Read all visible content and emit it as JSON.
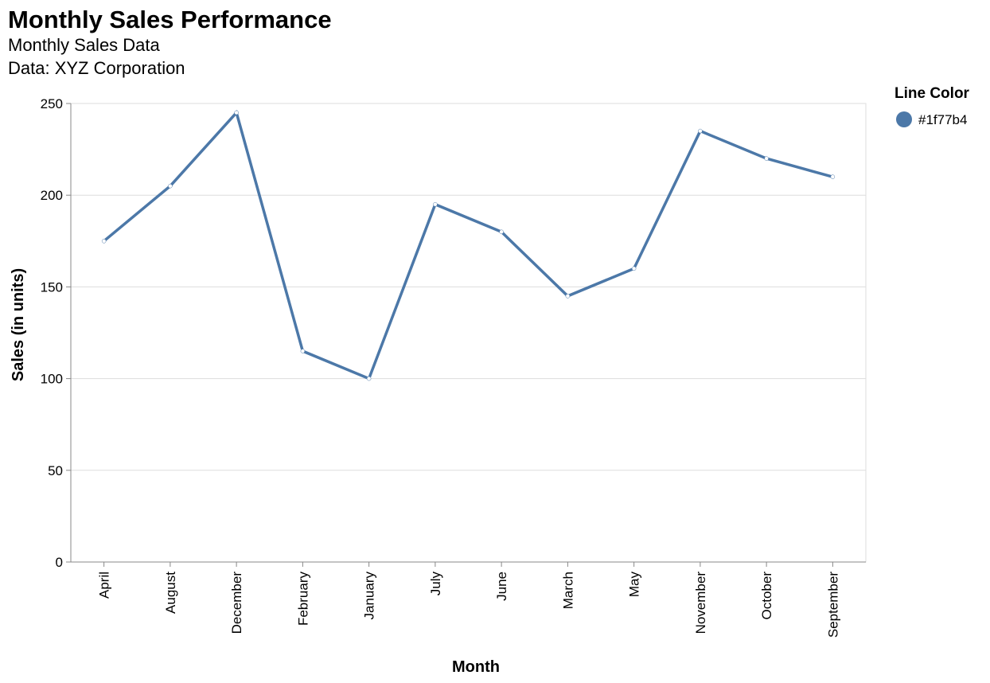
{
  "chart_data": {
    "type": "line",
    "title": "Monthly Sales Performance",
    "subtitle_lines": [
      "Monthly Sales Data",
      "Data: XYZ Corporation"
    ],
    "xlabel": "Month",
    "ylabel": "Sales (in units)",
    "categories": [
      "April",
      "August",
      "December",
      "February",
      "January",
      "July",
      "June",
      "March",
      "May",
      "November",
      "October",
      "September"
    ],
    "series": [
      {
        "values": [
          175,
          205,
          245,
          115,
          100,
          195,
          180,
          145,
          160,
          235,
          220,
          210
        ]
      }
    ],
    "ylim": [
      0,
      250
    ],
    "yticks": [
      "0",
      "50",
      "100",
      "150",
      "200",
      "250"
    ],
    "grid": true,
    "legend": {
      "title": "Line Color",
      "label": "#1f77b4",
      "placement": "top-right"
    },
    "line_color": "#4c78a8"
  }
}
